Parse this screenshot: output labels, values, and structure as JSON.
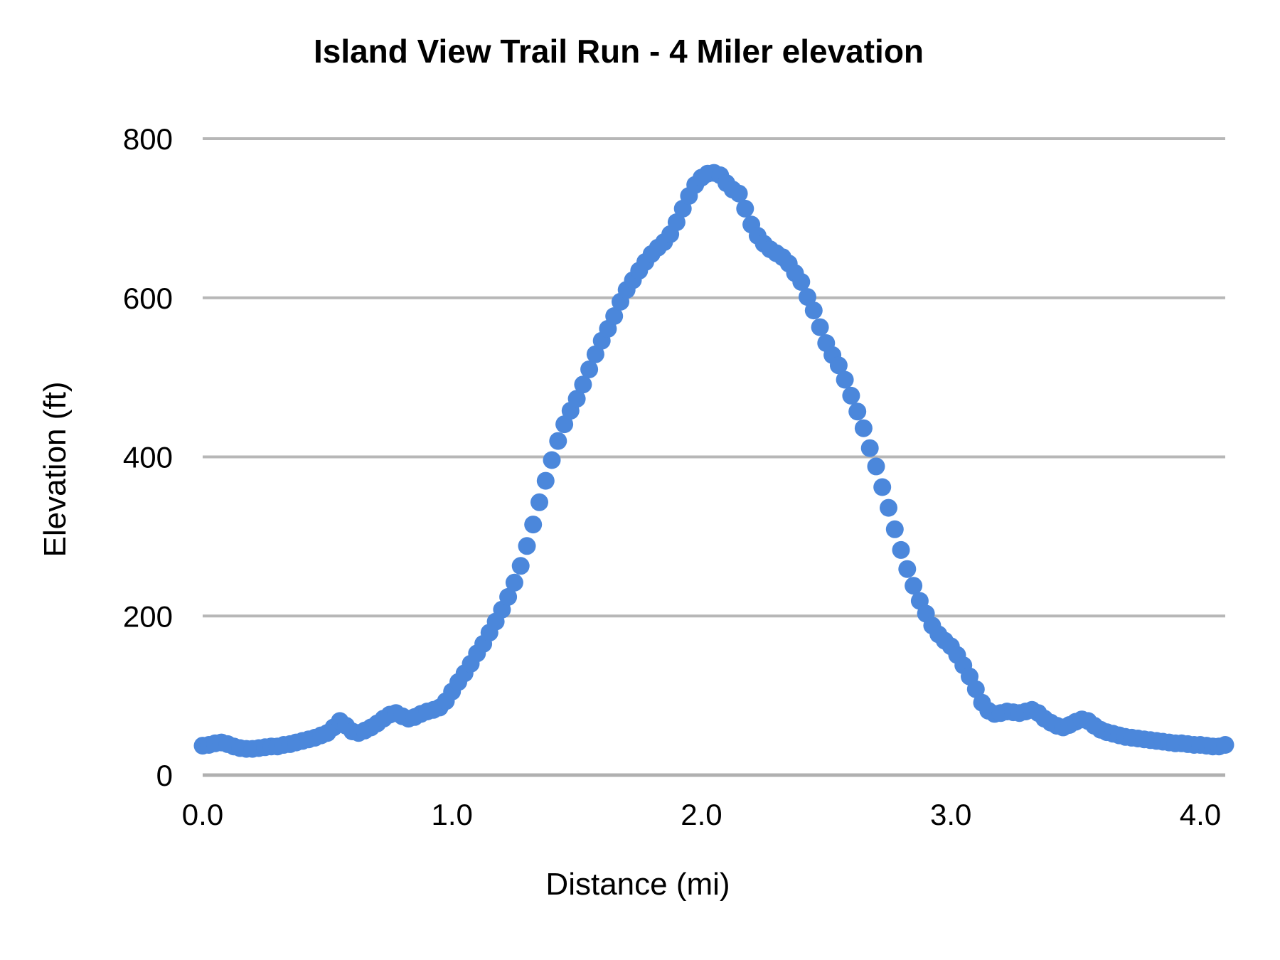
{
  "colors": {
    "dot": "#4b87db",
    "gridline": "#b7b7b7",
    "baseline": "#b0b0b0",
    "text": "#000000",
    "background": "#ffffff"
  },
  "chart_data": {
    "type": "scatter",
    "title": "Island View Trail Run - 4 Miler elevation",
    "xlabel": "Distance (mi)",
    "ylabel": "Elevation (ft)",
    "xlim": [
      0,
      4.1
    ],
    "ylim": [
      0,
      800
    ],
    "x_ticks": [
      0.0,
      1.0,
      2.0,
      3.0,
      4.0
    ],
    "x_tick_labels": [
      "0.0",
      "1.0",
      "2.0",
      "3.0",
      "4.0"
    ],
    "y_ticks": [
      0,
      200,
      400,
      600,
      800
    ],
    "y_tick_labels": [
      "0",
      "200",
      "400",
      "600",
      "800"
    ],
    "grid": true,
    "legend": false,
    "series": [
      {
        "name": "elevation",
        "x": [
          0,
          0.025,
          0.05,
          0.075,
          0.1,
          0.125,
          0.15,
          0.175,
          0.2,
          0.225,
          0.25,
          0.275,
          0.3,
          0.325,
          0.35,
          0.375,
          0.4,
          0.425,
          0.45,
          0.475,
          0.5,
          0.525,
          0.55,
          0.575,
          0.6,
          0.625,
          0.65,
          0.675,
          0.7,
          0.725,
          0.75,
          0.775,
          0.8,
          0.825,
          0.85,
          0.875,
          0.9,
          0.925,
          0.95,
          0.975,
          1,
          1.025,
          1.05,
          1.075,
          1.1,
          1.125,
          1.15,
          1.175,
          1.2,
          1.225,
          1.25,
          1.275,
          1.3,
          1.325,
          1.35,
          1.375,
          1.4,
          1.425,
          1.45,
          1.475,
          1.5,
          1.525,
          1.55,
          1.575,
          1.6,
          1.625,
          1.65,
          1.675,
          1.7,
          1.725,
          1.75,
          1.775,
          1.8,
          1.825,
          1.85,
          1.875,
          1.9,
          1.925,
          1.95,
          1.975,
          2,
          2.025,
          2.05,
          2.075,
          2.1,
          2.125,
          2.15,
          2.175,
          2.2,
          2.225,
          2.25,
          2.275,
          2.3,
          2.325,
          2.35,
          2.375,
          2.4,
          2.425,
          2.45,
          2.475,
          2.5,
          2.525,
          2.55,
          2.575,
          2.6,
          2.625,
          2.65,
          2.675,
          2.7,
          2.725,
          2.75,
          2.775,
          2.8,
          2.825,
          2.85,
          2.875,
          2.9,
          2.925,
          2.95,
          2.975,
          3,
          3.025,
          3.05,
          3.075,
          3.1,
          3.125,
          3.15,
          3.175,
          3.2,
          3.225,
          3.25,
          3.275,
          3.3,
          3.325,
          3.35,
          3.375,
          3.4,
          3.425,
          3.45,
          3.475,
          3.5,
          3.525,
          3.55,
          3.575,
          3.6,
          3.625,
          3.65,
          3.675,
          3.7,
          3.725,
          3.75,
          3.775,
          3.8,
          3.825,
          3.85,
          3.875,
          3.9,
          3.925,
          3.95,
          3.975,
          4,
          4.025,
          4.05,
          4.075,
          4.1
        ],
        "y": [
          37,
          38,
          40,
          41,
          39,
          36,
          34,
          33,
          33,
          34,
          35,
          36,
          36,
          38,
          39,
          41,
          43,
          45,
          47,
          50,
          53,
          60,
          68,
          62,
          55,
          53,
          56,
          60,
          65,
          71,
          76,
          78,
          74,
          71,
          73,
          77,
          80,
          82,
          85,
          93,
          105,
          117,
          128,
          140,
          153,
          165,
          179,
          193,
          208,
          224,
          242,
          263,
          288,
          315,
          343,
          370,
          396,
          420,
          441,
          458,
          473,
          491,
          510,
          529,
          546,
          561,
          577,
          595,
          610,
          622,
          634,
          645,
          655,
          663,
          670,
          680,
          695,
          712,
          728,
          742,
          751,
          756,
          757,
          754,
          744,
          736,
          731,
          712,
          692,
          678,
          668,
          661,
          656,
          651,
          643,
          631,
          620,
          601,
          584,
          563,
          543,
          528,
          515,
          497,
          477,
          457,
          436,
          411,
          388,
          362,
          336,
          309,
          283,
          259,
          238,
          219,
          203,
          188,
          177,
          169,
          162,
          151,
          138,
          124,
          108,
          91,
          81,
          77,
          78,
          80,
          79,
          78,
          80,
          82,
          78,
          71,
          66,
          62,
          60,
          63,
          67,
          70,
          68,
          62,
          57,
          54,
          52,
          50,
          48,
          47,
          46,
          45,
          44,
          43,
          42,
          41,
          40,
          40,
          39,
          38,
          38,
          37,
          36,
          36,
          38
        ]
      }
    ]
  }
}
